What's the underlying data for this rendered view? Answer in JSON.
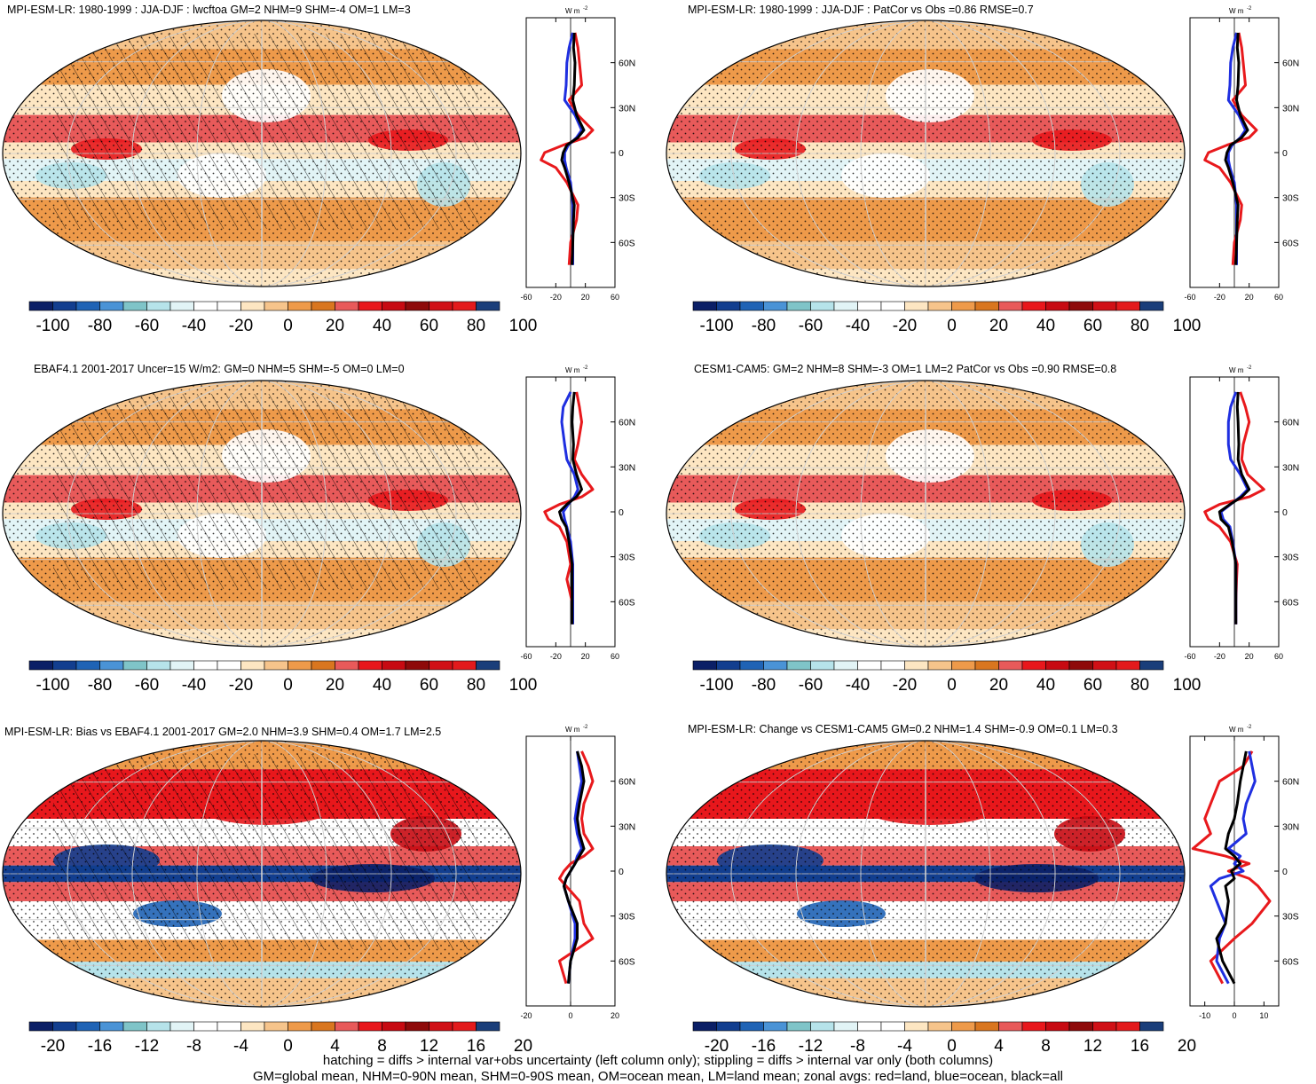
{
  "panels": [
    {
      "title": "MPI-ESM-LR: 1980-1999 : JJA-DJF : lwcftoa GM=2 NHM=9 SHM=-4 OM=1 LM=3",
      "colorbar_ticks": [
        "-100",
        "-80",
        "-60",
        "-40",
        "-20",
        "0",
        "20",
        "40",
        "60",
        "80",
        "100"
      ],
      "profile_xticks": [
        "-60",
        "-20",
        "20",
        "60"
      ],
      "profile_xlim": [
        -60,
        60
      ],
      "hatched": true
    },
    {
      "title": "MPI-ESM-LR: 1980-1999 : JJA-DJF : PatCor vs Obs =0.86 RMSE=0.7",
      "colorbar_ticks": [
        "-100",
        "-80",
        "-60",
        "-40",
        "-20",
        "0",
        "20",
        "40",
        "60",
        "80",
        "100"
      ],
      "profile_xticks": [
        "-60",
        "-20",
        "20",
        "60"
      ],
      "profile_xlim": [
        -60,
        60
      ],
      "hatched": false
    },
    {
      "title": "EBAF4.1 2001-2017 Uncer=15 W/m2: GM=0 NHM=5 SHM=-5 OM=0 LM=0",
      "colorbar_ticks": [
        "-100",
        "-80",
        "-60",
        "-40",
        "-20",
        "0",
        "20",
        "40",
        "60",
        "80",
        "100"
      ],
      "profile_xticks": [
        "-60",
        "-20",
        "20",
        "60"
      ],
      "profile_xlim": [
        -60,
        60
      ],
      "hatched": true
    },
    {
      "title": "CESM1-CAM5: GM=2 NHM=8 SHM=-3 OM=1 LM=2 PatCor vs Obs =0.90 RMSE=0.8",
      "colorbar_ticks": [
        "-100",
        "-80",
        "-60",
        "-40",
        "-20",
        "0",
        "20",
        "40",
        "60",
        "80",
        "100"
      ],
      "profile_xticks": [
        "-60",
        "-20",
        "20",
        "60"
      ],
      "profile_xlim": [
        -60,
        60
      ],
      "hatched": false
    },
    {
      "title": "MPI-ESM-LR: Bias vs EBAF4.1 2001-2017 GM=2.0 NHM=3.9 SHM=0.4 OM=1.7 LM=2.5",
      "colorbar_ticks": [
        "-20",
        "-16",
        "-12",
        "-8",
        "-4",
        "0",
        "4",
        "8",
        "12",
        "16",
        "20"
      ],
      "profile_xticks": [
        "-20",
        "0",
        "20"
      ],
      "profile_xlim": [
        -20,
        20
      ],
      "hatched": true
    },
    {
      "title": "MPI-ESM-LR: Change vs CESM1-CAM5 GM=0.2 NHM=1.4 SHM=-0.9 OM=0.1 LM=0.3",
      "colorbar_ticks": [
        "-20",
        "-16",
        "-12",
        "-8",
        "-4",
        "0",
        "4",
        "8",
        "12",
        "16",
        "20"
      ],
      "profile_xticks": [
        "-10",
        "0",
        "10"
      ],
      "profile_xlim": [
        -15,
        15
      ],
      "hatched": false
    }
  ],
  "profile_unit": "W m",
  "profile_unit_exp": "-2",
  "lat_ticks": [
    "60N",
    "30N",
    "0",
    "30S",
    "60S"
  ],
  "colors": {
    "palette": [
      "#0b1f66",
      "#123e8f",
      "#1f63b5",
      "#4a93d6",
      "#7fc4c8",
      "#b6e3ea",
      "#e2f4f6",
      "#ffffff",
      "#ffffff",
      "#fde6c2",
      "#f6c48b",
      "#ee9a4a",
      "#d9761f",
      "#e85a5a",
      "#e8171c",
      "#c70a12",
      "#8e0a0a",
      "#d01016",
      "#e31a1c",
      "#1a3e7a"
    ],
    "profile_land": "#e8191c",
    "profile_ocean": "#1f2fe0",
    "profile_all": "#000000"
  },
  "chart_data": [
    {
      "type": "heatmap",
      "title": "MPI-ESM-LR: 1980-1999 : JJA-DJF : lwcftoa GM=2 NHM=9 SHM=-4 OM=1 LM=3",
      "colorbar_range": [
        -100,
        100
      ],
      "zonal_mean_profile": {
        "lat": [
          80,
          70,
          60,
          45,
          35,
          25,
          15,
          10,
          5,
          0,
          -5,
          -10,
          -20,
          -35,
          -45,
          -60,
          -75
        ],
        "all": [
          5,
          4,
          6,
          5,
          3,
          8,
          18,
          10,
          -5,
          -10,
          -12,
          -8,
          -2,
          5,
          4,
          3,
          2
        ],
        "land": [
          6,
          10,
          12,
          15,
          -2,
          10,
          30,
          20,
          -10,
          -35,
          -40,
          -20,
          -5,
          10,
          8,
          0,
          -2
        ],
        "ocean": [
          3,
          -2,
          -5,
          -6,
          -8,
          6,
          15,
          8,
          -3,
          -8,
          -8,
          -6,
          0,
          3,
          3,
          3,
          3
        ]
      }
    },
    {
      "type": "heatmap",
      "title": "MPI-ESM-LR: 1980-1999 : JJA-DJF : PatCor vs Obs =0.86 RMSE=0.7",
      "colorbar_range": [
        -100,
        100
      ],
      "zonal_mean_profile": {
        "lat": [
          80,
          70,
          60,
          45,
          35,
          25,
          15,
          10,
          5,
          0,
          -5,
          -10,
          -20,
          -35,
          -45,
          -60,
          -75
        ],
        "all": [
          5,
          4,
          6,
          5,
          3,
          8,
          18,
          10,
          -5,
          -10,
          -12,
          -8,
          -2,
          5,
          4,
          3,
          2
        ],
        "land": [
          6,
          10,
          12,
          15,
          -2,
          10,
          30,
          20,
          -10,
          -35,
          -40,
          -20,
          -5,
          10,
          8,
          0,
          -2
        ],
        "ocean": [
          3,
          -2,
          -5,
          -6,
          -8,
          6,
          15,
          8,
          -3,
          -8,
          -8,
          -6,
          0,
          3,
          3,
          3,
          3
        ]
      }
    },
    {
      "type": "heatmap",
      "title": "EBAF4.1 2001-2017 Uncer=15 W/m2: GM=0 NHM=5 SHM=-5 OM=0 LM=0",
      "colorbar_range": [
        -100,
        100
      ],
      "zonal_mean_profile": {
        "lat": [
          80,
          70,
          60,
          45,
          35,
          25,
          15,
          10,
          5,
          0,
          -5,
          -10,
          -20,
          -35,
          -45,
          -60,
          -75
        ],
        "all": [
          5,
          3,
          2,
          4,
          3,
          8,
          15,
          8,
          -5,
          -15,
          -12,
          -6,
          -2,
          2,
          2,
          2,
          2
        ],
        "land": [
          8,
          12,
          15,
          10,
          5,
          15,
          30,
          15,
          -15,
          -35,
          -30,
          -15,
          -5,
          0,
          -5,
          2,
          3
        ],
        "ocean": [
          0,
          -10,
          -12,
          -8,
          -5,
          5,
          10,
          5,
          -3,
          -10,
          -8,
          -5,
          0,
          3,
          3,
          3,
          3
        ]
      }
    },
    {
      "type": "heatmap",
      "title": "CESM1-CAM5: GM=2 NHM=8 SHM=-3 OM=1 LM=2 PatCor vs Obs =0.90 RMSE=0.8",
      "colorbar_range": [
        -100,
        100
      ],
      "zonal_mean_profile": {
        "lat": [
          80,
          70,
          60,
          45,
          35,
          25,
          15,
          10,
          5,
          0,
          -5,
          -10,
          -20,
          -35,
          -45,
          -60,
          -75
        ],
        "all": [
          5,
          4,
          5,
          6,
          5,
          10,
          20,
          10,
          -6,
          -20,
          -18,
          -8,
          -3,
          2,
          2,
          2,
          2
        ],
        "land": [
          8,
          15,
          20,
          12,
          10,
          18,
          40,
          20,
          -20,
          -40,
          -35,
          -20,
          -5,
          4,
          3,
          2,
          2
        ],
        "ocean": [
          2,
          -5,
          -8,
          -8,
          -5,
          8,
          18,
          8,
          -5,
          -18,
          -15,
          -6,
          -2,
          2,
          2,
          2,
          2
        ]
      }
    },
    {
      "type": "heatmap",
      "title": "MPI-ESM-LR: Bias vs EBAF4.1 2001-2017 GM=2.0 NHM=3.9 SHM=0.4 OM=1.7 LM=2.5",
      "colorbar_range": [
        -20,
        20
      ],
      "zonal_mean_profile": {
        "lat": [
          80,
          70,
          60,
          45,
          35,
          25,
          15,
          10,
          5,
          0,
          -5,
          -10,
          -20,
          -35,
          -45,
          -60,
          -75
        ],
        "all": [
          3,
          5,
          6,
          4,
          3,
          4,
          6,
          4,
          2,
          0,
          -2,
          -3,
          -1,
          3,
          3,
          0,
          -1
        ],
        "land": [
          5,
          8,
          10,
          6,
          5,
          6,
          10,
          6,
          0,
          -3,
          -5,
          -2,
          4,
          6,
          10,
          -5,
          -2
        ],
        "ocean": [
          3,
          4,
          5,
          3,
          2,
          3,
          5,
          3,
          2,
          0,
          -2,
          -3,
          -1,
          2,
          2,
          0,
          -1
        ]
      }
    },
    {
      "type": "heatmap",
      "title": "MPI-ESM-LR: Change vs CESM1-CAM5 GM=0.2 NHM=1.4 SHM=-0.9 OM=0.1 LM=0.3",
      "colorbar_range": [
        -20,
        20
      ],
      "zonal_mean_profile": {
        "lat": [
          80,
          70,
          60,
          45,
          35,
          25,
          15,
          10,
          5,
          0,
          -5,
          -10,
          -20,
          -35,
          -45,
          -60,
          -75
        ],
        "all": [
          4,
          3,
          2,
          1,
          0,
          -2,
          -3,
          0,
          2,
          -1,
          0,
          -3,
          -2,
          -3,
          -6,
          -4,
          0
        ],
        "land": [
          6,
          3,
          -5,
          -8,
          -10,
          -8,
          -14,
          -3,
          5,
          -2,
          5,
          8,
          12,
          6,
          0,
          -8,
          -4
        ],
        "ocean": [
          5,
          6,
          7,
          4,
          3,
          4,
          -2,
          2,
          0,
          3,
          -5,
          -8,
          -6,
          -3,
          -5,
          -6,
          -2
        ]
      }
    }
  ],
  "footer": {
    "line1": "hatching = diffs > internal var+obs uncertainty (left column only); stippling = diffs > internal var only (both columns)",
    "line2": "GM=global mean, NHM=0-90N mean, SHM=0-90S mean, OM=ocean mean, LM=land mean; zonal avgs: red=land, blue=ocean, black=all"
  }
}
